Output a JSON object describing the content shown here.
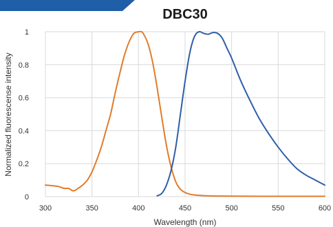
{
  "colors": {
    "banner": "#1F5FA8",
    "grid": "#D9D9D9",
    "axis_text": "#333333"
  },
  "chart_data": {
    "type": "line",
    "title": "DBC30",
    "xlabel": "Wavelength (nm)",
    "ylabel": "Normalized fluorescense intensity",
    "xlim": [
      300,
      600
    ],
    "ylim": [
      0,
      1
    ],
    "x_ticks": [
      "300",
      "350",
      "400",
      "450",
      "500",
      "550",
      "600"
    ],
    "y_ticks": [
      "0",
      "0.2",
      "0.4",
      "0.6",
      "0.8",
      "1"
    ],
    "grid": true,
    "legend": "none",
    "series": [
      {
        "color": "#E07B2A",
        "x": [
          300,
          310,
          315,
          320,
          325,
          330,
          335,
          340,
          345,
          350,
          355,
          360,
          365,
          370,
          375,
          380,
          385,
          390,
          395,
          400,
          403,
          405,
          410,
          415,
          420,
          425,
          430,
          435,
          440,
          445,
          450,
          455,
          460,
          465,
          470,
          480,
          500,
          550,
          600
        ],
        "y": [
          0.07,
          0.065,
          0.06,
          0.05,
          0.05,
          0.035,
          0.05,
          0.07,
          0.1,
          0.15,
          0.22,
          0.3,
          0.4,
          0.5,
          0.63,
          0.75,
          0.86,
          0.94,
          0.99,
          1.0,
          1.0,
          0.99,
          0.93,
          0.82,
          0.66,
          0.48,
          0.31,
          0.18,
          0.09,
          0.045,
          0.025,
          0.015,
          0.01,
          0.008,
          0.006,
          0.004,
          0.003,
          0.002,
          0.002
        ]
      },
      {
        "color": "#2E5EA8",
        "x": [
          420,
          425,
          430,
          435,
          440,
          445,
          450,
          455,
          460,
          465,
          470,
          475,
          480,
          485,
          490,
          495,
          500,
          510,
          520,
          530,
          540,
          550,
          560,
          570,
          580,
          590,
          600
        ],
        "y": [
          0.005,
          0.02,
          0.07,
          0.16,
          0.3,
          0.5,
          0.7,
          0.87,
          0.97,
          1.0,
          0.99,
          0.985,
          0.995,
          0.99,
          0.96,
          0.9,
          0.84,
          0.7,
          0.58,
          0.47,
          0.38,
          0.3,
          0.23,
          0.17,
          0.13,
          0.1,
          0.07
        ]
      }
    ]
  }
}
